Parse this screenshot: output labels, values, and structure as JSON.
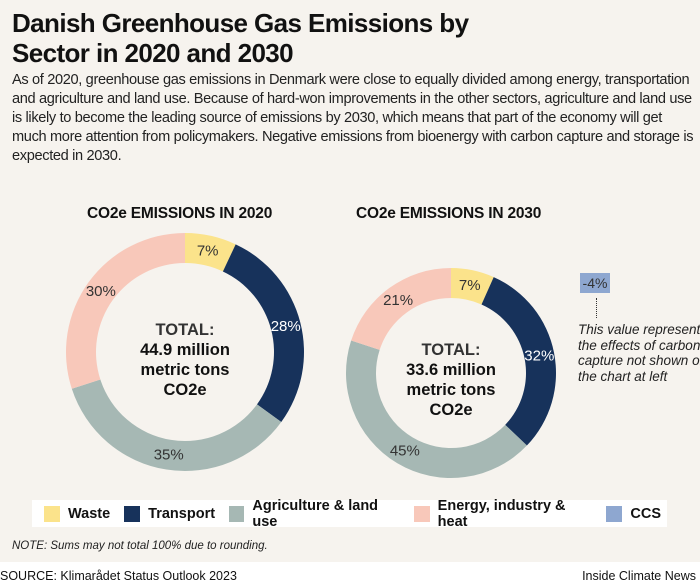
{
  "title": "Danish Greenhouse Gas Emissions by Sector in 2020 and 2030",
  "intro": "As of 2020, greenhouse gas emissions in Denmark were close to equally divided among energy, transportation and agriculture and land use. Because of hard-won improvements in the other sectors, agriculture and land use is likely to become the leading source of emissions by 2030, which means that part of the economy will get much more attention from policymakers. Negative emissions from bioenergy with carbon capture and storage is expected in 2030.",
  "colors": {
    "Waste": "#fbe38b",
    "Transport": "#17325b",
    "Agriculture & land use": "#a6b8b4",
    "Energy, industry & heat": "#f8c8ba",
    "CCS": "#8ea7d0"
  },
  "chart_data": [
    {
      "type": "pie",
      "title": "CO2e EMISSIONS IN 2020",
      "center_label": {
        "line1": "TOTAL:",
        "line2": "44.9 million",
        "line3": "metric tons",
        "line4": "CO2e"
      },
      "categories": [
        "Waste",
        "Transport",
        "Agriculture & land use",
        "Energy, industry & heat"
      ],
      "values": [
        7,
        28,
        35,
        30
      ],
      "labels": [
        "7%",
        "28%",
        "35%",
        "30%"
      ]
    },
    {
      "type": "pie",
      "title": "CO2e EMISSIONS IN 2030",
      "center_label": {
        "line1": "TOTAL:",
        "line2": "33.6 million",
        "line3": "metric tons",
        "line4": "CO2e"
      },
      "categories": [
        "Waste",
        "Transport",
        "Agriculture & land use",
        "Energy, industry & heat"
      ],
      "values": [
        7,
        32,
        45,
        21
      ],
      "labels": [
        "7%",
        "32%",
        "45%",
        "21%"
      ],
      "off_chart": {
        "category": "CCS",
        "value": -4,
        "label": "-4%",
        "note": "This value represents the effects of carbon capture not shown on the chart at left"
      }
    }
  ],
  "legend": [
    "Waste",
    "Transport",
    "Agriculture & land use",
    "Energy, industry & heat",
    "CCS"
  ],
  "note": "NOTE: Sums may not total 100% due to rounding.",
  "source": "SOURCE: Klimarådet Status Outlook 2023",
  "credit": "Inside Climate News"
}
